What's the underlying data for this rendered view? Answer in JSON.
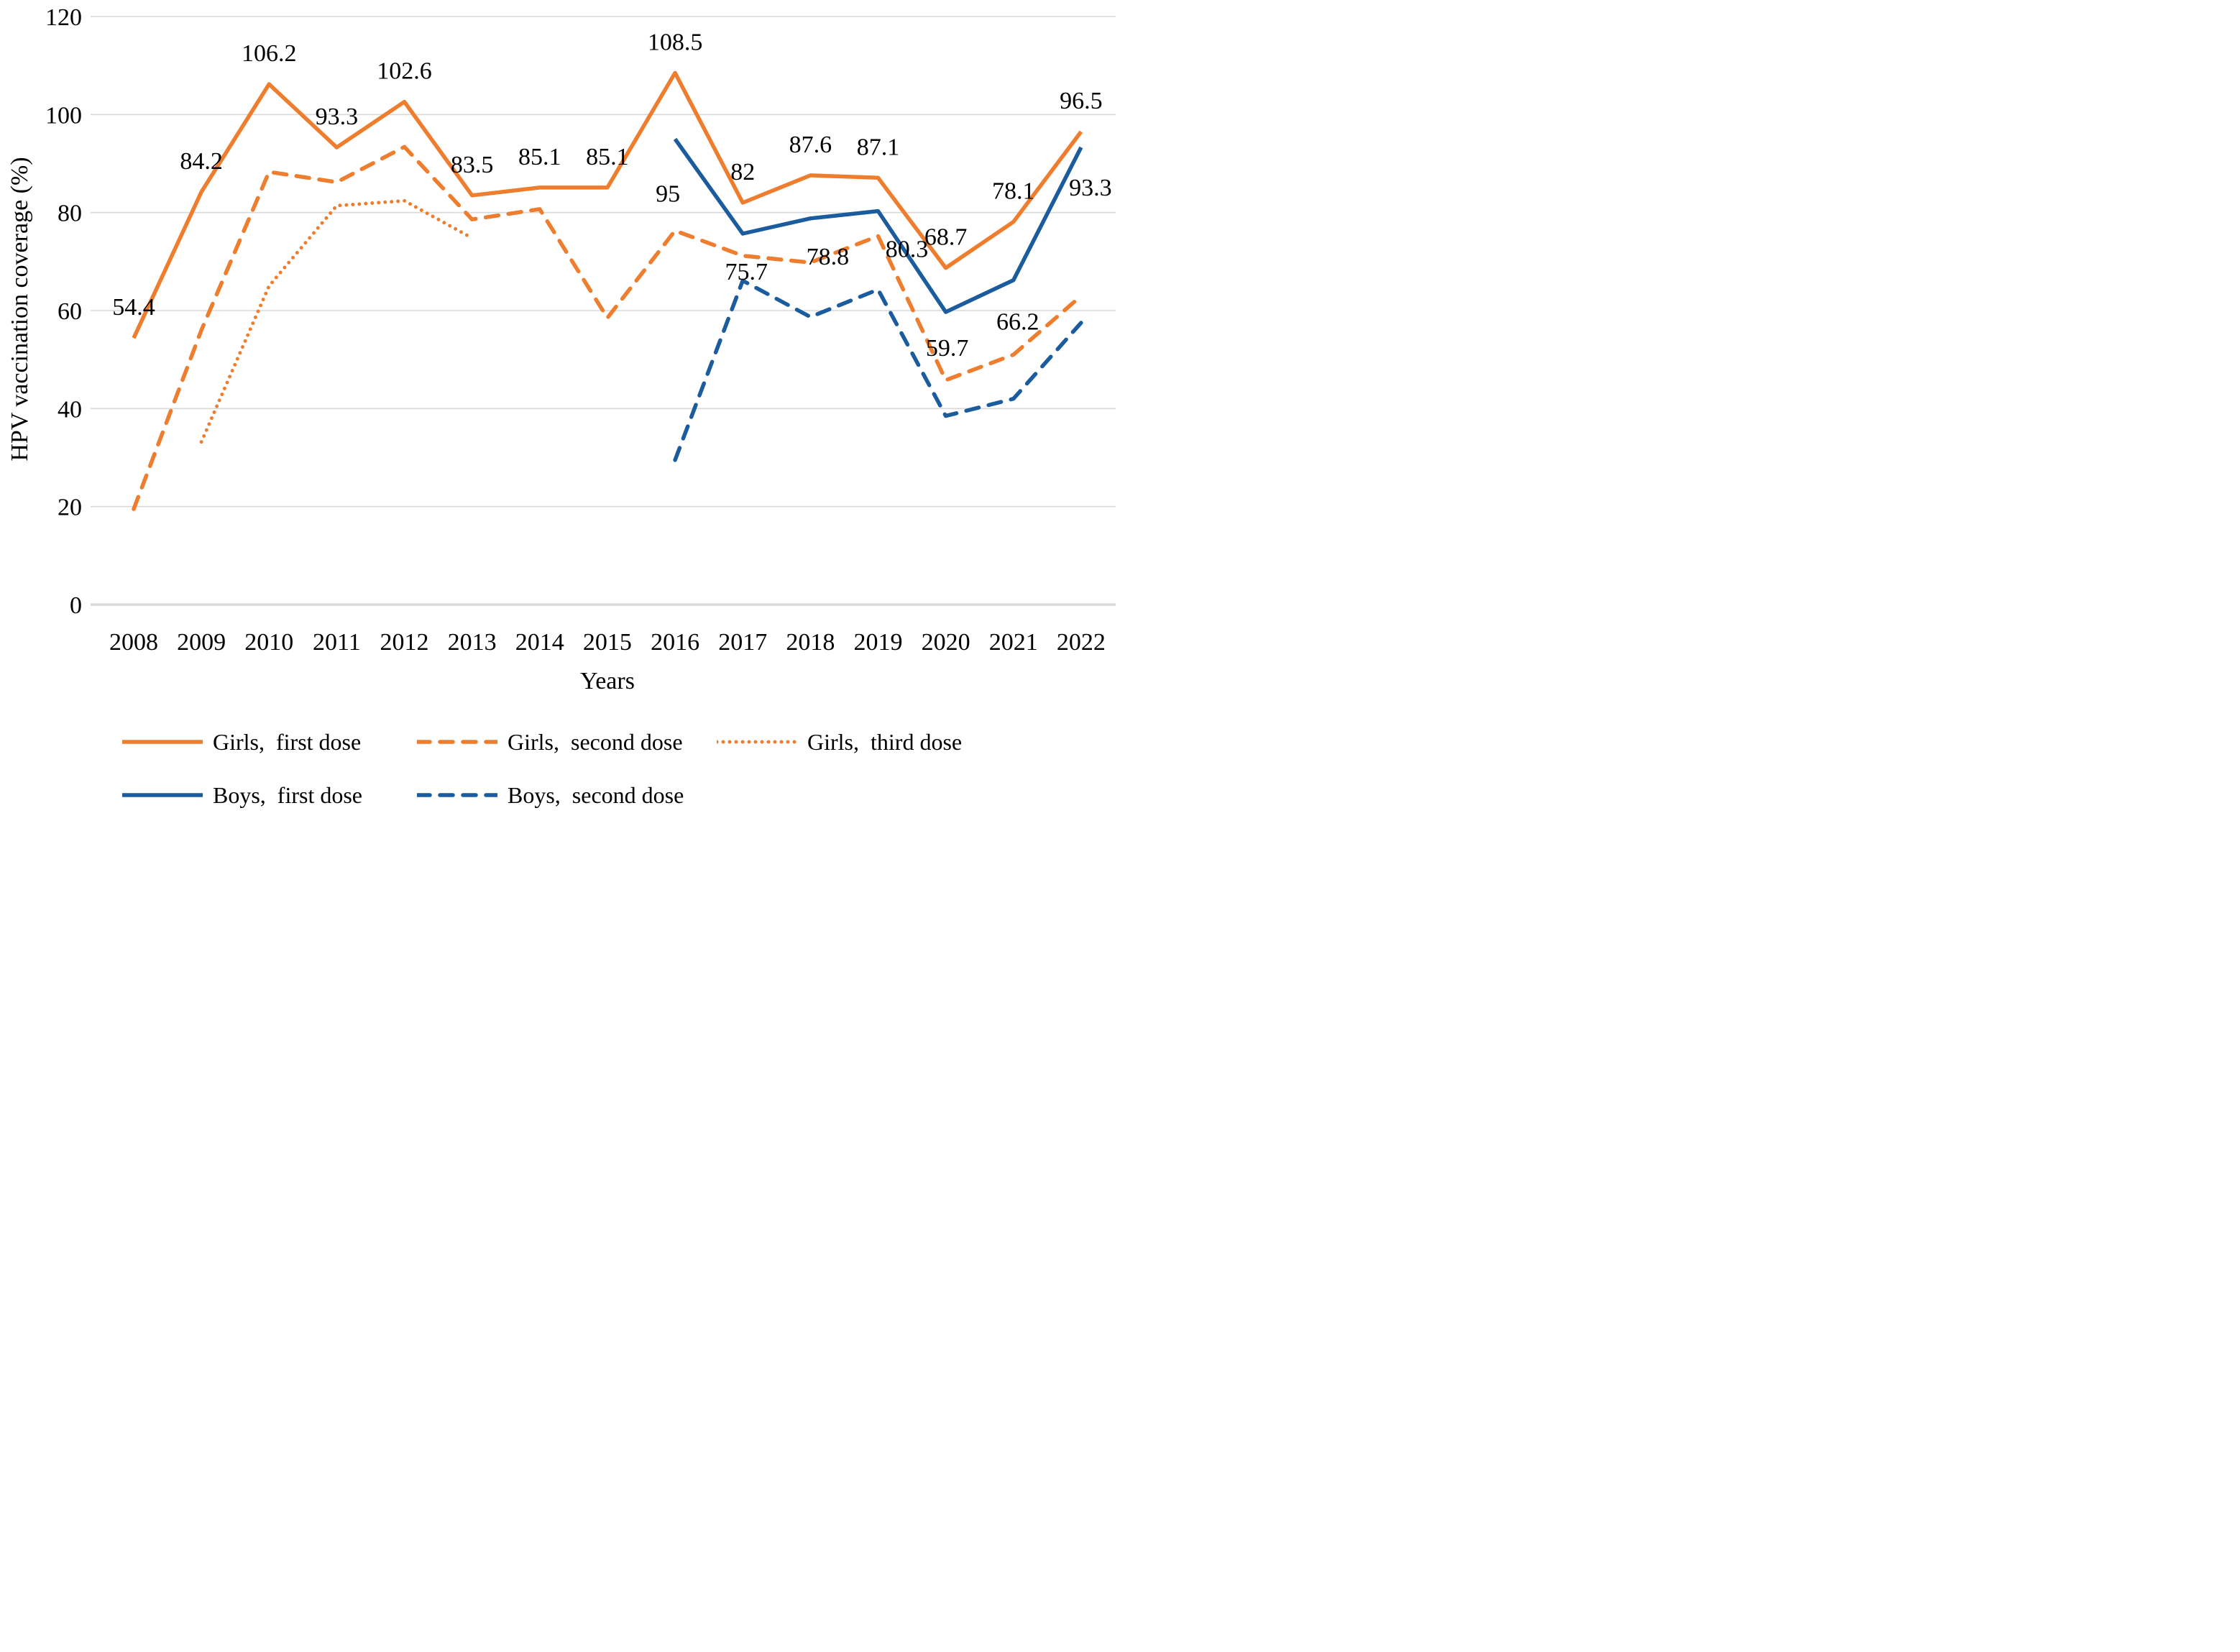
{
  "page": {
    "background": "#FFFFFF"
  },
  "chart_data": {
    "type": "line",
    "title": "",
    "xlabel": "Years",
    "ylabel": "HPV vaccination coverage (%)",
    "x": [
      2008,
      2009,
      2010,
      2011,
      2012,
      2013,
      2014,
      2015,
      2016,
      2017,
      2018,
      2019,
      2020,
      2021,
      2022
    ],
    "ylim": [
      0,
      120
    ],
    "yticks": [
      0,
      20,
      40,
      60,
      80,
      100,
      120
    ],
    "grid": true,
    "gridline_color": "#D9D9D9",
    "legend_position": "bottom",
    "series": [
      {
        "name": "Girls,  first dose",
        "color": "#EE7D2E",
        "line_style": "solid",
        "data_labels": true,
        "values": [
          54.4,
          84.2,
          106.2,
          93.3,
          102.6,
          83.5,
          85.1,
          85.1,
          108.5,
          82,
          87.6,
          87.1,
          68.7,
          78.1,
          96.5
        ]
      },
      {
        "name": "Girls,  second dose",
        "color": "#EE7D2E",
        "line_style": "dashed",
        "data_labels": false,
        "values": [
          19.5,
          56,
          88.3,
          86.2,
          93.4,
          78.6,
          80.7,
          58.5,
          76.3,
          71.2,
          69.8,
          75.2,
          45.8,
          51,
          63
        ]
      },
      {
        "name": "Girls,  third dose",
        "color": "#EE7D2E",
        "line_style": "dotted",
        "data_labels": false,
        "values": [
          null,
          33.2,
          65,
          81.4,
          82.4,
          74.8,
          null,
          null,
          null,
          null,
          null,
          null,
          null,
          null,
          null
        ]
      },
      {
        "name": "Boys,  first dose",
        "color": "#1B5C9E",
        "line_style": "solid",
        "data_labels": true,
        "values": [
          null,
          null,
          null,
          null,
          null,
          null,
          null,
          null,
          95,
          75.7,
          78.8,
          80.3,
          59.7,
          66.2,
          93.3
        ]
      },
      {
        "name": "Boys,  second dose",
        "color": "#1B5C9E",
        "line_style": "dashed",
        "data_labels": false,
        "values": [
          null,
          null,
          null,
          null,
          null,
          null,
          null,
          null,
          29.5,
          66.1,
          58.7,
          64.3,
          38.5,
          42,
          57.5
        ]
      }
    ]
  }
}
